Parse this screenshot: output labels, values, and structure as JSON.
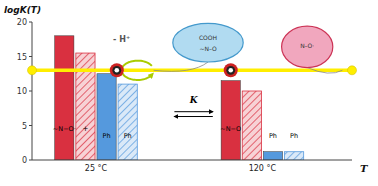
{
  "chart_data": {
    "type": "bar",
    "y_label": "logK(T)",
    "x_label": "T",
    "categories": [
      "25 °C",
      "120 °C"
    ],
    "series": [
      {
        "color": "#d93040",
        "values": [
          18.0,
          11.5
        ]
      },
      {
        "color": "#d93040",
        "values": [
          15.5,
          10.0
        ]
      },
      {
        "color": "#5599dd",
        "values": [
          12.5,
          1.2
        ]
      },
      {
        "color": "#5599dd",
        "values": [
          11.0,
          1.2
        ]
      }
    ],
    "reference_line": 13.0,
    "annotations": [
      "- H⁺",
      "K",
      "COOH",
      "∼N–O",
      "N–O·",
      "∼N−O·",
      "+",
      "Ph",
      "Ph",
      "∼N−O",
      "Ph",
      "Ph"
    ],
    "ylim": [
      0,
      20
    ],
    "yticks": [
      0,
      5,
      10,
      15,
      20
    ],
    "grid": false
  }
}
